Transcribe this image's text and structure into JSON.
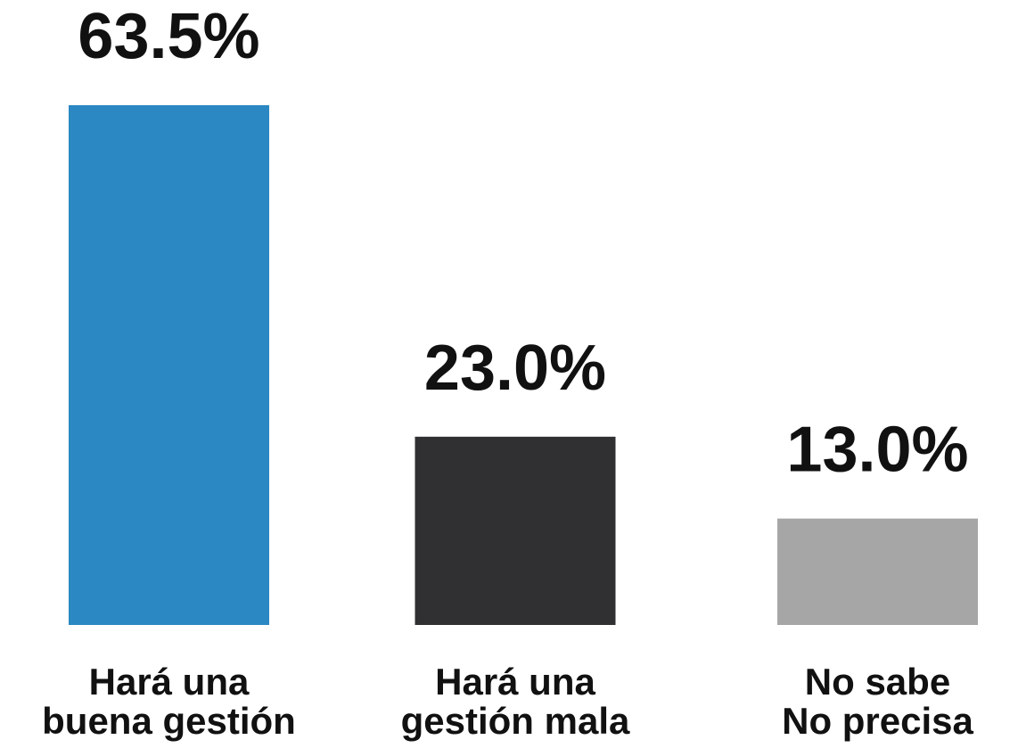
{
  "chart_data": {
    "type": "bar",
    "categories": [
      [
        "Hará una",
        "buena gestión"
      ],
      [
        "Hará una",
        "gestión mala"
      ],
      [
        "No sabe",
        "No precisa"
      ]
    ],
    "values": [
      63.5,
      23.0,
      13.0
    ],
    "value_labels": [
      "63.5%",
      "23.0%",
      "13.0%"
    ],
    "colors": [
      "#2b88c2",
      "#303032",
      "#a6a6a6"
    ]
  }
}
